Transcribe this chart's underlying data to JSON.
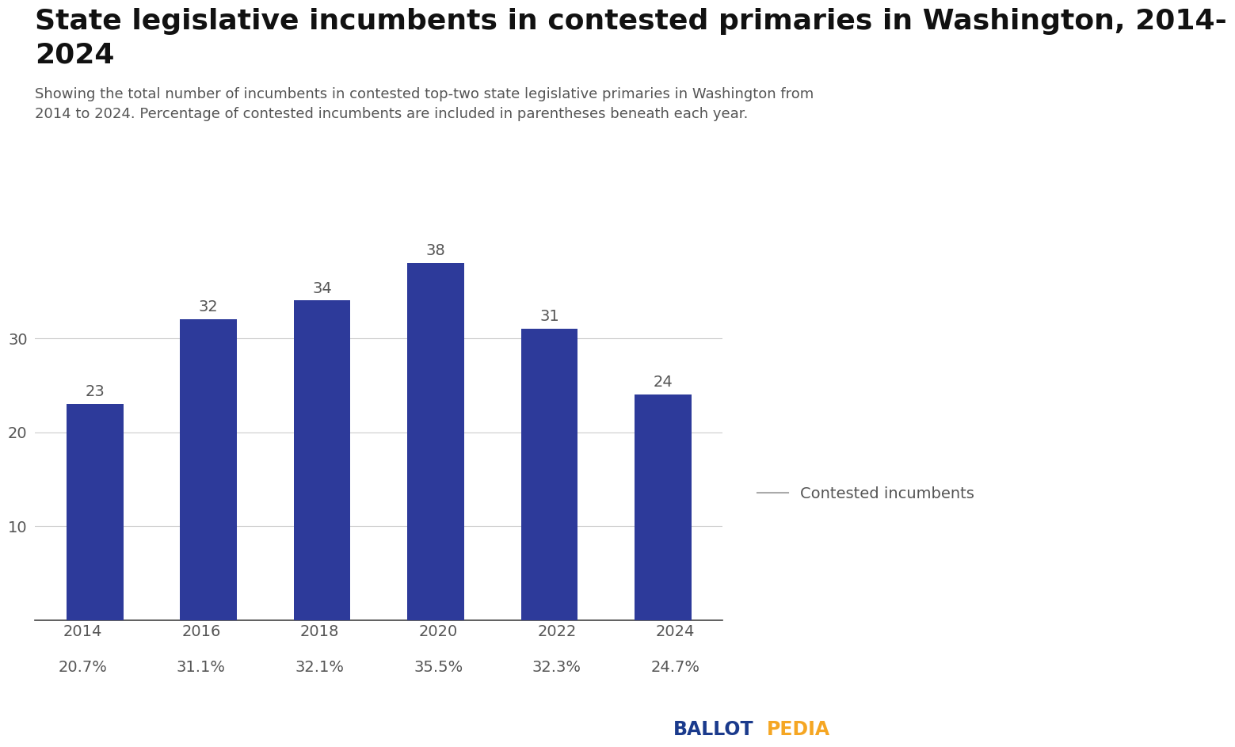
{
  "title": "State legislative incumbents in contested primaries in Washington, 2014-\n2024",
  "subtitle": "Showing the total number of incumbents in contested top-two state legislative primaries in Washington from\n2014 to 2024. Percentage of contested incumbents are included in parentheses beneath each year.",
  "years": [
    "2014",
    "2016",
    "2018",
    "2020",
    "2022",
    "2024"
  ],
  "values": [
    23,
    32,
    34,
    38,
    31,
    24
  ],
  "percentages": [
    "20.7%",
    "31.1%",
    "32.1%",
    "35.5%",
    "32.3%",
    "24.7%"
  ],
  "bar_color": "#2D3A9A",
  "background_color": "#ffffff",
  "ylabel_ticks": [
    10,
    20,
    30
  ],
  "ylim": [
    0,
    42
  ],
  "legend_label": "Contested incumbents",
  "legend_line_color": "#aaaaaa",
  "title_fontsize": 26,
  "subtitle_fontsize": 13,
  "bar_label_fontsize": 14,
  "tick_fontsize": 14,
  "pct_fontsize": 14,
  "legend_fontsize": 14,
  "ballotpedia_ballot_color": "#1a3a8c",
  "ballotpedia_pedia_color": "#f5a623"
}
